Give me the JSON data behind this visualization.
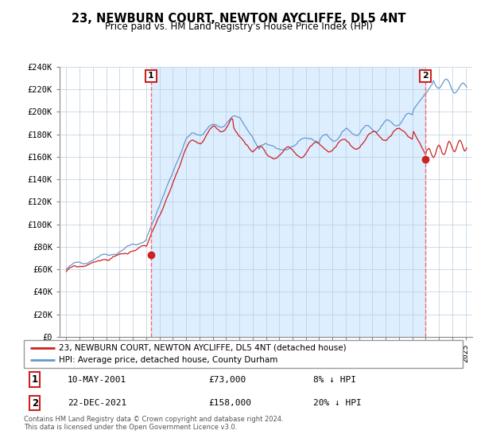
{
  "title": "23, NEWBURN COURT, NEWTON AYCLIFFE, DL5 4NT",
  "subtitle": "Price paid vs. HM Land Registry's House Price Index (HPI)",
  "hpi_color": "#6699cc",
  "price_color": "#cc2222",
  "legend_label_price": "23, NEWBURN COURT, NEWTON AYCLIFFE, DL5 4NT (detached house)",
  "legend_label_hpi": "HPI: Average price, detached house, County Durham",
  "annotation1_label": "1",
  "annotation1_date": "10-MAY-2001",
  "annotation1_price": "£73,000",
  "annotation1_hpi": "8% ↓ HPI",
  "annotation2_label": "2",
  "annotation2_date": "22-DEC-2021",
  "annotation2_price": "£158,000",
  "annotation2_hpi": "20% ↓ HPI",
  "footer": "Contains HM Land Registry data © Crown copyright and database right 2024.\nThis data is licensed under the Open Government Licence v3.0.",
  "sale1_year": 2001.36,
  "sale1_price": 73000,
  "sale2_year": 2021.97,
  "sale2_price": 158000,
  "xmin": 1994.5,
  "xmax": 2025.5,
  "ylim": [
    0,
    240000
  ],
  "yticks": [
    0,
    20000,
    40000,
    60000,
    80000,
    100000,
    120000,
    140000,
    160000,
    180000,
    200000,
    220000,
    240000
  ],
  "ytick_labels": [
    "£0",
    "£20K",
    "£40K",
    "£60K",
    "£80K",
    "£100K",
    "£120K",
    "£140K",
    "£160K",
    "£180K",
    "£200K",
    "£220K",
    "£240K"
  ],
  "xticks": [
    1995,
    1996,
    1997,
    1998,
    1999,
    2000,
    2001,
    2002,
    2003,
    2004,
    2005,
    2006,
    2007,
    2008,
    2009,
    2010,
    2011,
    2012,
    2013,
    2014,
    2015,
    2016,
    2017,
    2018,
    2019,
    2020,
    2021,
    2022,
    2023,
    2024,
    2025
  ],
  "shade_color": "#ddeeff",
  "vline_color": "#ff6666"
}
